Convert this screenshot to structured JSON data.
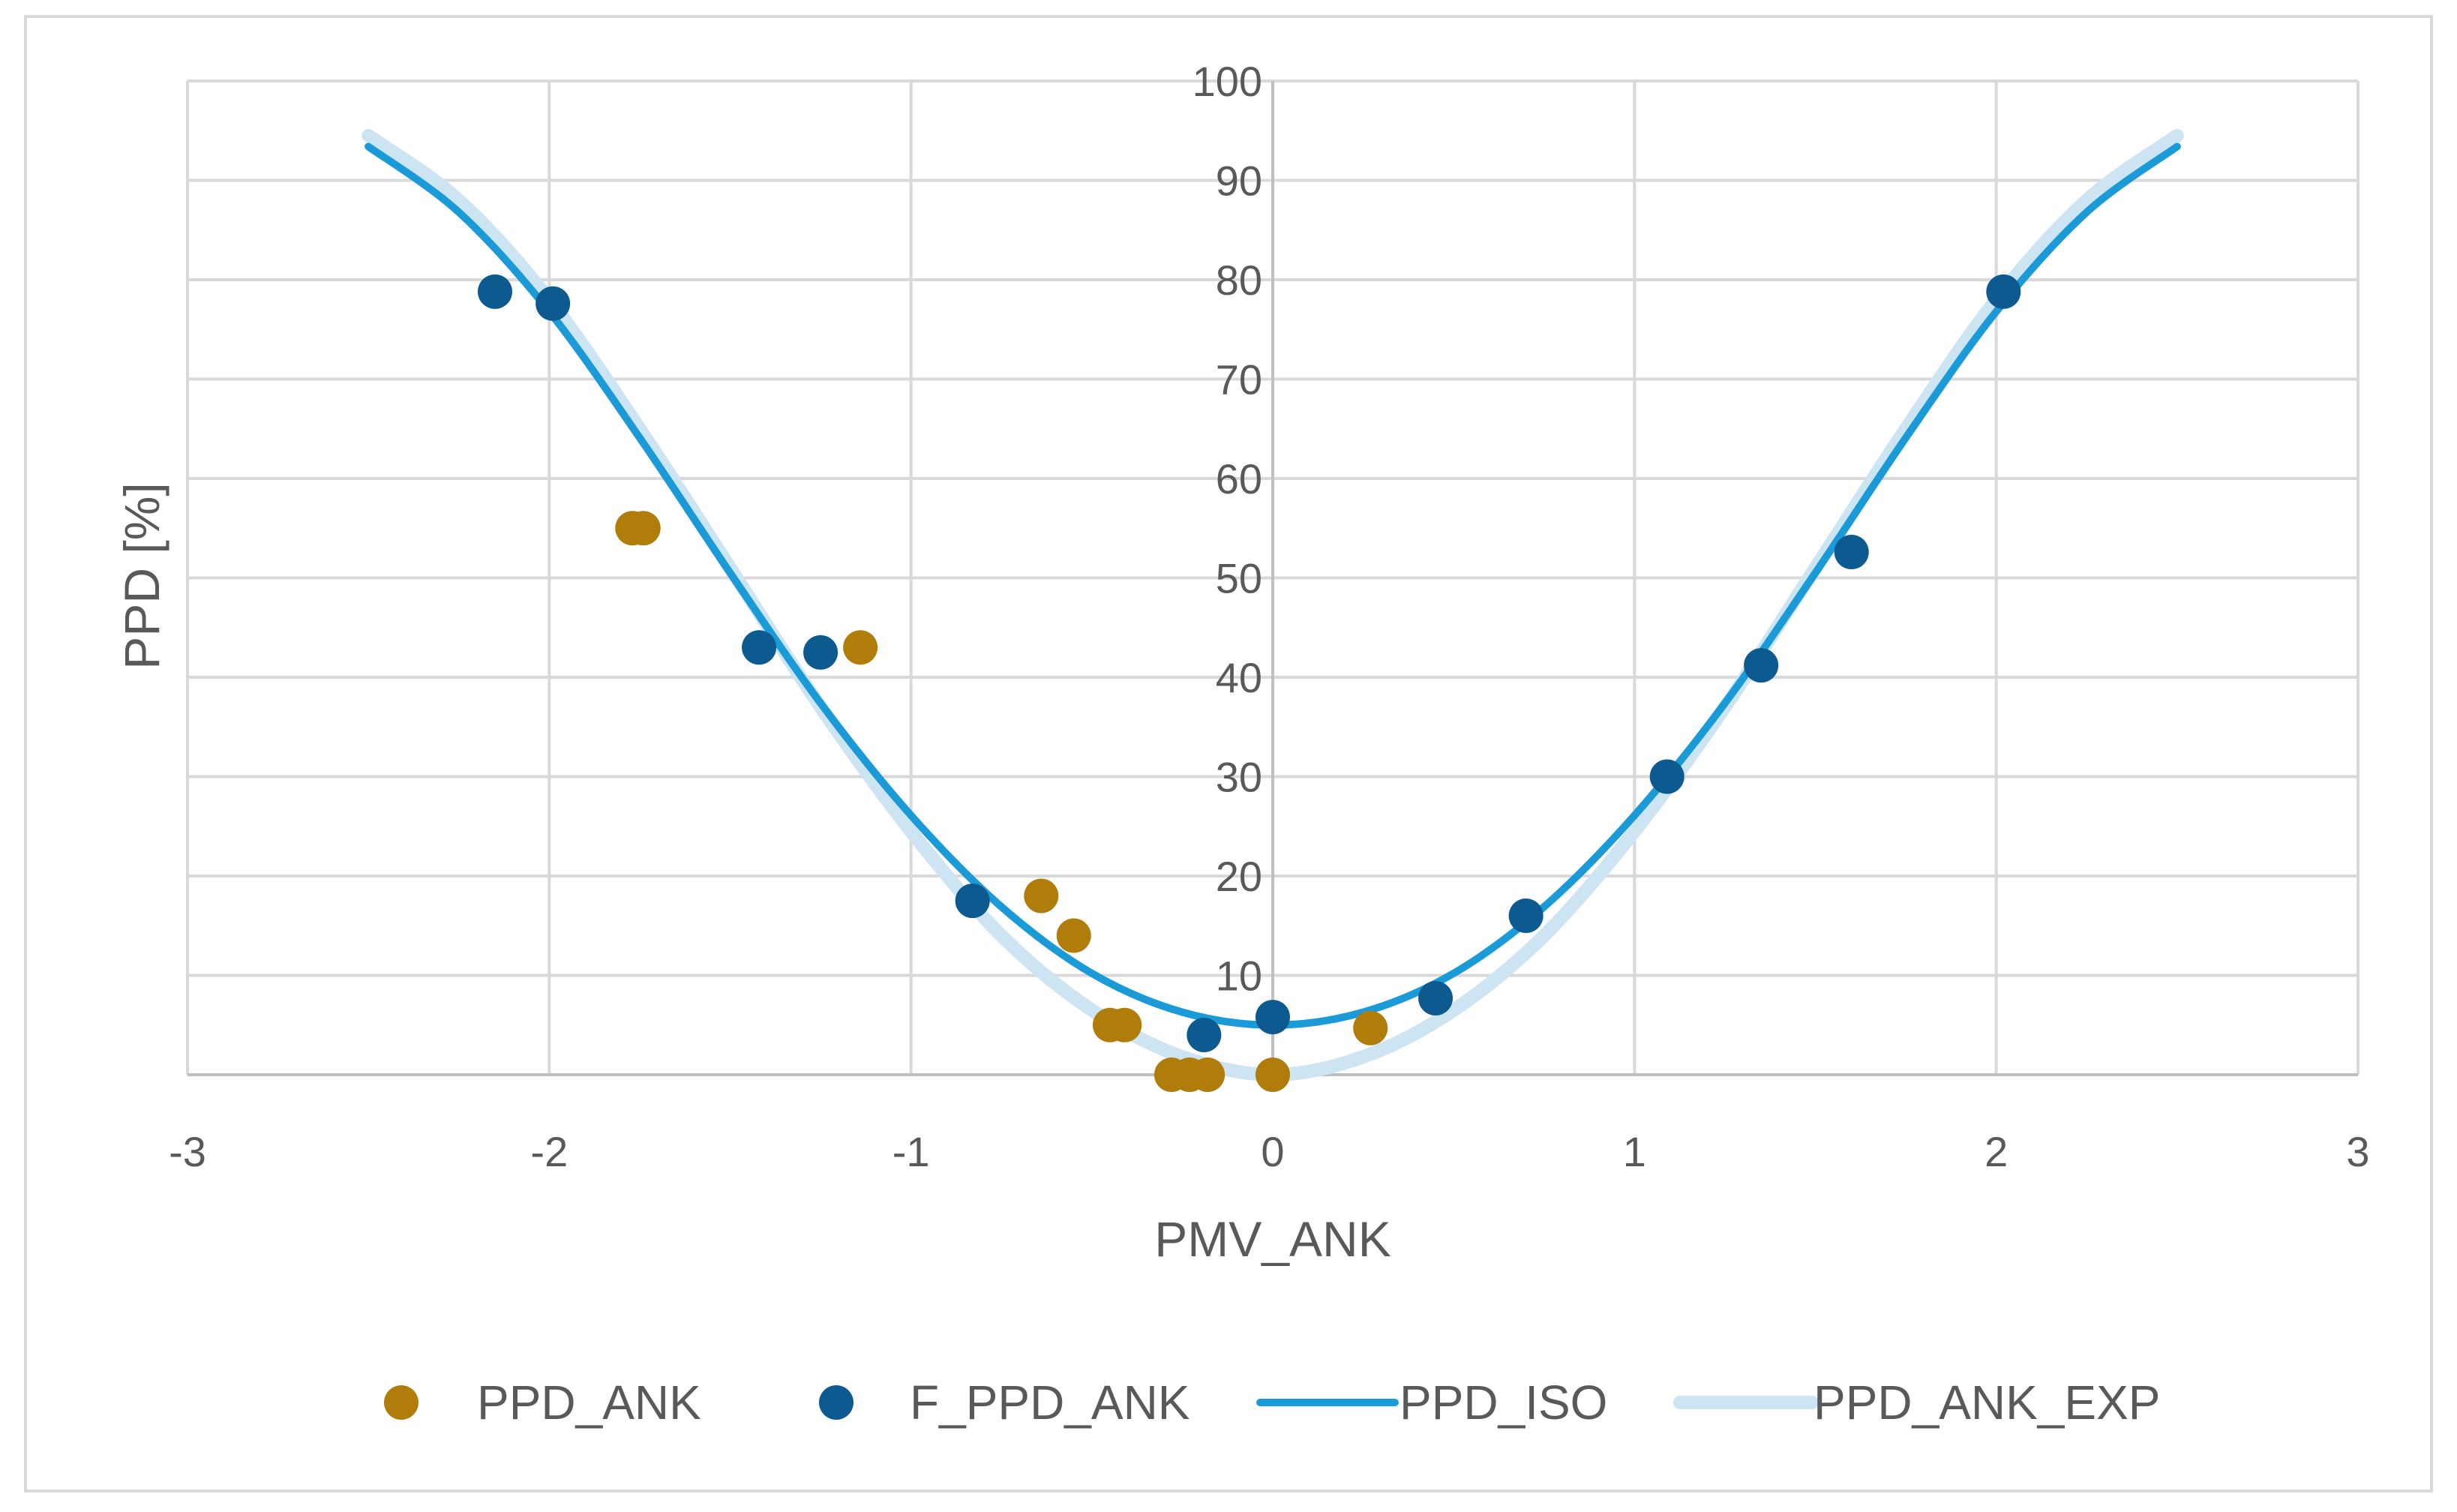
{
  "chart_data": {
    "type": "scatter",
    "title": "",
    "xlabel": "PMV_ANK",
    "ylabel": "PPD [%]",
    "xlim": [
      -3,
      3
    ],
    "ylim": [
      0,
      100
    ],
    "x_ticks": [
      -3,
      -2,
      -1,
      0,
      1,
      2,
      3
    ],
    "y_ticks": [
      10,
      20,
      30,
      40,
      50,
      60,
      70,
      80,
      90,
      100
    ],
    "grid": true,
    "legend_position": "bottom",
    "colors": {
      "PPD_ANK": "#b07d0b",
      "F_PPD_ANK": "#0c5a8f",
      "PPD_ISO": "#1b9ad8",
      "PPD_ANK_EXP": "#cde4f3",
      "grid": "#d9d9d9",
      "text": "#595959"
    },
    "series": [
      {
        "name": "PPD_ANK",
        "kind": "scatter",
        "points": [
          [
            -1.77,
            55
          ],
          [
            -1.74,
            55
          ],
          [
            -1.14,
            43
          ],
          [
            -0.64,
            18
          ],
          [
            -0.55,
            14
          ],
          [
            -0.45,
            5
          ],
          [
            -0.41,
            5
          ],
          [
            -0.28,
            0
          ],
          [
            -0.23,
            0
          ],
          [
            -0.18,
            0
          ],
          [
            0.0,
            0
          ],
          [
            0.27,
            4.7
          ]
        ]
      },
      {
        "name": "F_PPD_ANK",
        "kind": "scatter",
        "points": [
          [
            -2.15,
            78.8
          ],
          [
            -1.99,
            77.6
          ],
          [
            -1.42,
            43
          ],
          [
            -1.25,
            42.5
          ],
          [
            -0.83,
            17.5
          ],
          [
            -0.19,
            4
          ],
          [
            0.0,
            5.8
          ],
          [
            0.45,
            7.7
          ],
          [
            0.7,
            16
          ],
          [
            1.09,
            30
          ],
          [
            1.35,
            41.2
          ],
          [
            1.6,
            52.6
          ],
          [
            2.02,
            78.8
          ]
        ]
      },
      {
        "name": "PPD_ISO",
        "kind": "line",
        "points": [
          [
            -2.5,
            93.4
          ],
          [
            -2.25,
            86.8
          ],
          [
            -2.0,
            76.8
          ],
          [
            -1.75,
            64.1
          ],
          [
            -1.5,
            50.5
          ],
          [
            -1.25,
            37.4
          ],
          [
            -1.0,
            26.1
          ],
          [
            -0.75,
            16.9
          ],
          [
            -0.5,
            10.2
          ],
          [
            -0.25,
            6.3
          ],
          [
            0.0,
            5.0
          ],
          [
            0.25,
            6.3
          ],
          [
            0.5,
            10.2
          ],
          [
            0.75,
            16.9
          ],
          [
            1.0,
            26.1
          ],
          [
            1.25,
            37.4
          ],
          [
            1.5,
            50.5
          ],
          [
            1.75,
            64.1
          ],
          [
            2.0,
            76.8
          ],
          [
            2.25,
            86.8
          ],
          [
            2.5,
            93.4
          ]
        ]
      },
      {
        "name": "PPD_ANK_EXP",
        "kind": "line",
        "points": [
          [
            -2.5,
            94.5
          ],
          [
            -2.25,
            88.0
          ],
          [
            -2.0,
            78.0
          ],
          [
            -1.75,
            65.0
          ],
          [
            -1.5,
            51.0
          ],
          [
            -1.25,
            37.0
          ],
          [
            -1.0,
            24.5
          ],
          [
            -0.75,
            14.0
          ],
          [
            -0.5,
            6.5
          ],
          [
            -0.25,
            1.8
          ],
          [
            0.0,
            0.0
          ],
          [
            0.25,
            1.8
          ],
          [
            0.5,
            6.5
          ],
          [
            0.75,
            14.0
          ],
          [
            1.0,
            24.5
          ],
          [
            1.25,
            37.0
          ],
          [
            1.5,
            51.0
          ],
          [
            1.75,
            65.0
          ],
          [
            2.0,
            78.0
          ],
          [
            2.25,
            88.0
          ],
          [
            2.5,
            94.5
          ]
        ]
      }
    ],
    "legend": [
      "PPD_ANK",
      "F_PPD_ANK",
      "PPD_ISO",
      "PPD_ANK_EXP"
    ]
  }
}
